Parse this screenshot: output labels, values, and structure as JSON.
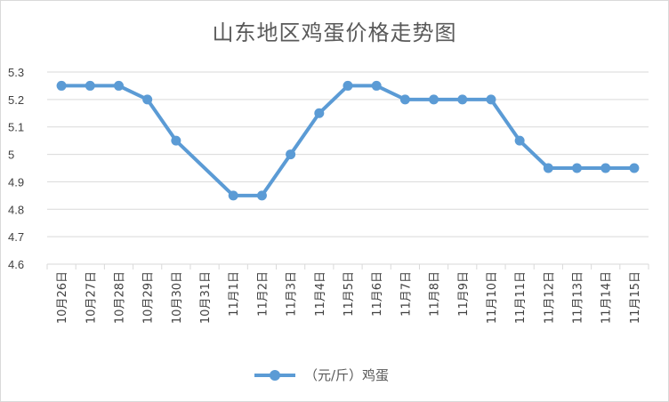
{
  "chart_data": {
    "type": "line",
    "title": "山东地区鸡蛋价格走势图",
    "categories": [
      "10月26日",
      "10月27日",
      "10月28日",
      "10月29日",
      "10月30日",
      "10月31日",
      "11月1日",
      "11月2日",
      "11月3日",
      "11月4日",
      "11月5日",
      "11月6日",
      "11月7日",
      "11月8日",
      "11月9日",
      "11月10日",
      "11月11日",
      "11月12日",
      "11月13日",
      "11月14日",
      "11月15日"
    ],
    "series": [
      {
        "name": "（元/斤）鸡蛋",
        "color": "#5b9bd5",
        "values": [
          5.25,
          5.25,
          5.25,
          5.2,
          5.05,
          null,
          4.85,
          4.85,
          5.0,
          5.15,
          5.25,
          5.25,
          5.2,
          5.2,
          5.2,
          5.2,
          5.05,
          4.95,
          4.95,
          4.95,
          4.95
        ]
      }
    ],
    "yticks": [
      "4.6",
      "4.7",
      "4.8",
      "4.9",
      "5",
      "5.1",
      "5.2",
      "5.3"
    ],
    "ylim": [
      4.6,
      5.3
    ],
    "grid": true,
    "legend": "bottom"
  }
}
